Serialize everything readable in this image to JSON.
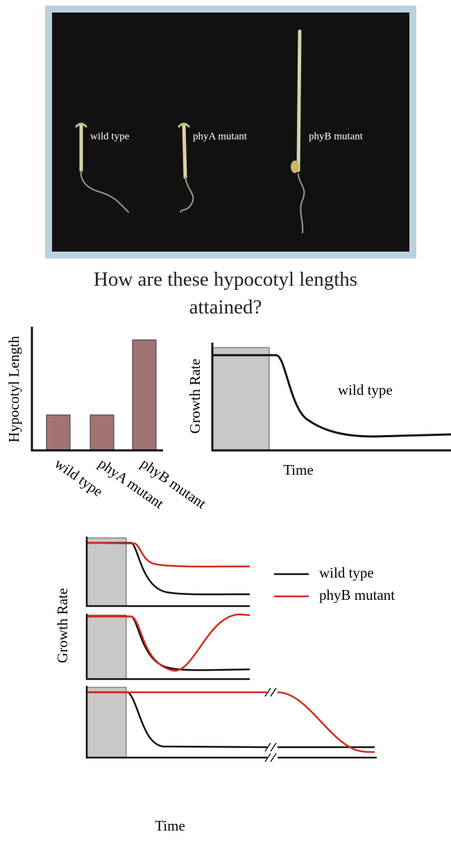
{
  "photo": {
    "labels": [
      "wild type",
      "phyA mutant",
      "phyB mutant"
    ]
  },
  "question": "How are these hypocotyl lengths attained?",
  "bar_chart": {
    "y_label": "Hypocotyl Length",
    "categories": [
      "wild type",
      "phyA mutant",
      "phyB mutant"
    ]
  },
  "rate_chart": {
    "y_label": "Growth Rate",
    "x_label": "Time",
    "curve_label": "wild type"
  },
  "comparison": {
    "legend": [
      "wild type",
      "phyB mutant"
    ],
    "y_label": "Growth Rate",
    "x_label": "Time"
  }
}
